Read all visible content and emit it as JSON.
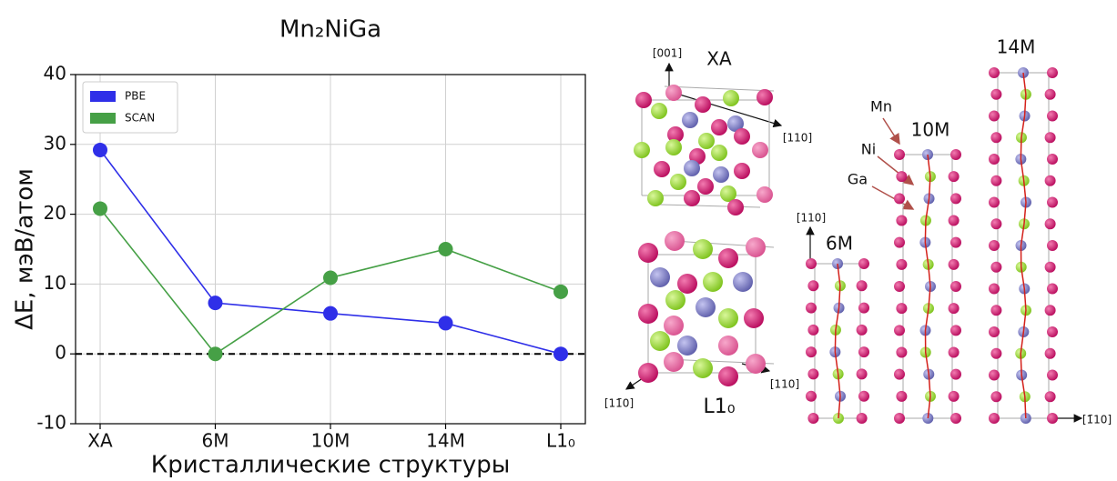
{
  "chart_data": {
    "type": "line",
    "title": "Mn₂NiGa",
    "x_label": "Кристаллические структуры",
    "y_label": "ΔE, мэВ/атом",
    "categories": [
      "XA",
      "6M",
      "10M",
      "14M",
      "L1₀"
    ],
    "series": [
      {
        "name": "PBE",
        "color": "#2f2fe8",
        "values": [
          29.2,
          7.3,
          5.8,
          4.4,
          0
        ]
      },
      {
        "name": "SCAN",
        "color": "#46a046",
        "values": [
          20.8,
          0,
          10.9,
          15.0,
          8.9
        ]
      }
    ],
    "ylim": [
      -10,
      40
    ],
    "yticks": [
      -10,
      0,
      10,
      20,
      30,
      40
    ],
    "grid": true,
    "legend": "upper-left",
    "reference_line": {
      "value": 0,
      "style": "dashed"
    }
  },
  "structures": {
    "xa": {
      "label": "XA",
      "axis_up": "[001]",
      "axis_right": "[110]"
    },
    "l10": {
      "label": "L1₀",
      "axis_left": "[11̄0]",
      "axis_right": "[110]"
    },
    "six_m": {
      "label": "6M",
      "axis_up": "[110]"
    },
    "ten_m": {
      "label": "10M"
    },
    "fourteen_m": {
      "label": "14M",
      "axis_right": "[1̄10]"
    },
    "elements": [
      "Mn",
      "Ni",
      "Ga"
    ]
  }
}
